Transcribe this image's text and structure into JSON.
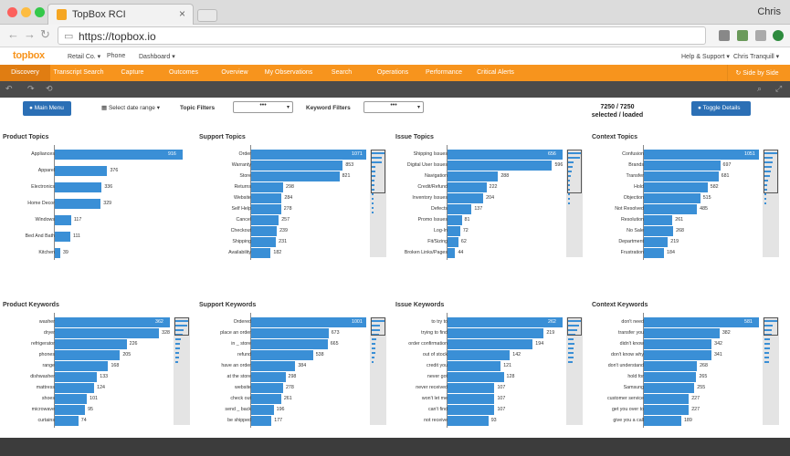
{
  "browser": {
    "tab_title": "TopBox RCI",
    "user": "Chris",
    "url": "https://topbox.io"
  },
  "app": {
    "logo": "topbox",
    "header_menu": [
      "Retail Co. ▾",
      "Phone",
      "Dashboard ▾"
    ],
    "help": "Help & Support ▾",
    "user": "Chris Tranquill ▾",
    "nav": [
      "Discovery",
      "Transcript Search",
      "Capture",
      "Outcomes",
      "Overview",
      "My Observations",
      "Search",
      "Operations",
      "Performance",
      "Critical Alerts"
    ],
    "side_by_side": "Side by Side"
  },
  "toolbar": {
    "main_menu": "Main Menu",
    "date_range": "Select date range",
    "topic_filters": "Topic Filters",
    "keyword_filters": "Keyword Filters",
    "dd_value": "•••",
    "count_value": "7250 / 7250",
    "count_label": "selected / loaded",
    "toggle_details": "Toggle Details"
  },
  "panels": [
    {
      "title": "Product Topics",
      "max": 916,
      "rows": [
        [
          "Appliances",
          916
        ],
        [
          "Apparel",
          376
        ],
        [
          "Electronics",
          336
        ],
        [
          "Home Decor",
          329
        ],
        [
          "Windows",
          117
        ],
        [
          "Bed And Bath",
          111
        ],
        [
          "Kitchen",
          39
        ]
      ],
      "gap": 18,
      "scroll": false
    },
    {
      "title": "Support Topics",
      "max": 1071,
      "rows": [
        [
          "Order",
          1071
        ],
        [
          "Warranty",
          853
        ],
        [
          "Store",
          821
        ],
        [
          "Returns",
          298
        ],
        [
          "Website",
          284
        ],
        [
          "Self Help",
          278
        ],
        [
          "Cancel",
          257
        ],
        [
          "Checkout",
          239
        ],
        [
          "Shipping",
          231
        ],
        [
          "Availability",
          182
        ]
      ],
      "gap": 12,
      "scroll": true,
      "mini": [
        1071,
        853,
        821,
        298,
        284,
        278,
        257,
        239,
        231,
        182,
        150,
        120,
        100,
        80
      ]
    },
    {
      "title": "Issue Topics",
      "max": 656,
      "rows": [
        [
          "Shipping Issues",
          656
        ],
        [
          "Digital User Issues",
          596
        ],
        [
          "Navigation",
          288
        ],
        [
          "Credit/Refund",
          222
        ],
        [
          "Inventory Issues",
          204
        ],
        [
          "Defects",
          137
        ],
        [
          "Promo Issues",
          81
        ],
        [
          "Log-In",
          72
        ],
        [
          "Fit/Sizing",
          62
        ],
        [
          "Broken Links/Pages",
          44
        ]
      ],
      "gap": 12,
      "scroll": true,
      "mini": [
        656,
        596,
        288,
        222,
        204,
        137,
        81,
        72,
        62,
        44,
        30,
        20
      ]
    },
    {
      "title": "Context Topics",
      "max": 1051,
      "rows": [
        [
          "Confusion",
          1051
        ],
        [
          "Brands",
          697
        ],
        [
          "Transfer",
          681
        ],
        [
          "Hold",
          582
        ],
        [
          "Objection",
          515
        ],
        [
          "Not Resolved",
          485
        ],
        [
          "Resolution",
          261
        ],
        [
          "No Sale",
          268
        ],
        [
          "Department",
          219
        ],
        [
          "Frustration",
          184
        ]
      ],
      "gap": 12,
      "scroll": true,
      "mini": [
        1051,
        697,
        681,
        582,
        515,
        485,
        268,
        261,
        219,
        184,
        140,
        100
      ]
    },
    {
      "title": "Product Keywords",
      "max": 362,
      "rows": [
        [
          "washer",
          362
        ],
        [
          "dryer",
          328
        ],
        [
          "refrigerator",
          226
        ],
        [
          "phones",
          205
        ],
        [
          "range",
          168
        ],
        [
          "dishwasher",
          133
        ],
        [
          "mattress",
          124
        ],
        [
          "shoes",
          101
        ],
        [
          "microwave",
          95
        ],
        [
          "curtains",
          74
        ]
      ],
      "gap": 12,
      "scroll": true,
      "mini": []
    },
    {
      "title": "Support Keywords",
      "max": 1001,
      "rows": [
        [
          "Ordered",
          1001
        ],
        [
          "place an order",
          673
        ],
        [
          "in _ store",
          665
        ],
        [
          "refund",
          538
        ],
        [
          "have an order",
          384
        ],
        [
          "at the store",
          298
        ],
        [
          "website",
          278
        ],
        [
          "check out",
          261
        ],
        [
          "send _ back",
          196
        ],
        [
          "be shipped",
          177
        ]
      ],
      "gap": 12,
      "scroll": true,
      "mini": []
    },
    {
      "title": "Issue Keywords",
      "max": 262,
      "rows": [
        [
          "to try to",
          262
        ],
        [
          "trying to find",
          219
        ],
        [
          "order confirmation",
          194
        ],
        [
          "out of stock",
          142
        ],
        [
          "credit you",
          121
        ],
        [
          "never got",
          128
        ],
        [
          "never received",
          107
        ],
        [
          "won't let me",
          107
        ],
        [
          "can't find",
          107
        ],
        [
          "not receive",
          93
        ]
      ],
      "gap": 12,
      "scroll": true,
      "mini": []
    },
    {
      "title": "Context Keywords",
      "max": 581,
      "rows": [
        [
          "don't need",
          581
        ],
        [
          "transfer you",
          382
        ],
        [
          "didn't know",
          342
        ],
        [
          "don't know why",
          341
        ],
        [
          "don't understand",
          268
        ],
        [
          "hold for",
          265
        ],
        [
          "Samsung",
          255
        ],
        [
          "customer service",
          227
        ],
        [
          "get you over to",
          227
        ],
        [
          "give you a call",
          189
        ]
      ],
      "gap": 12,
      "scroll": true,
      "mini": []
    }
  ]
}
